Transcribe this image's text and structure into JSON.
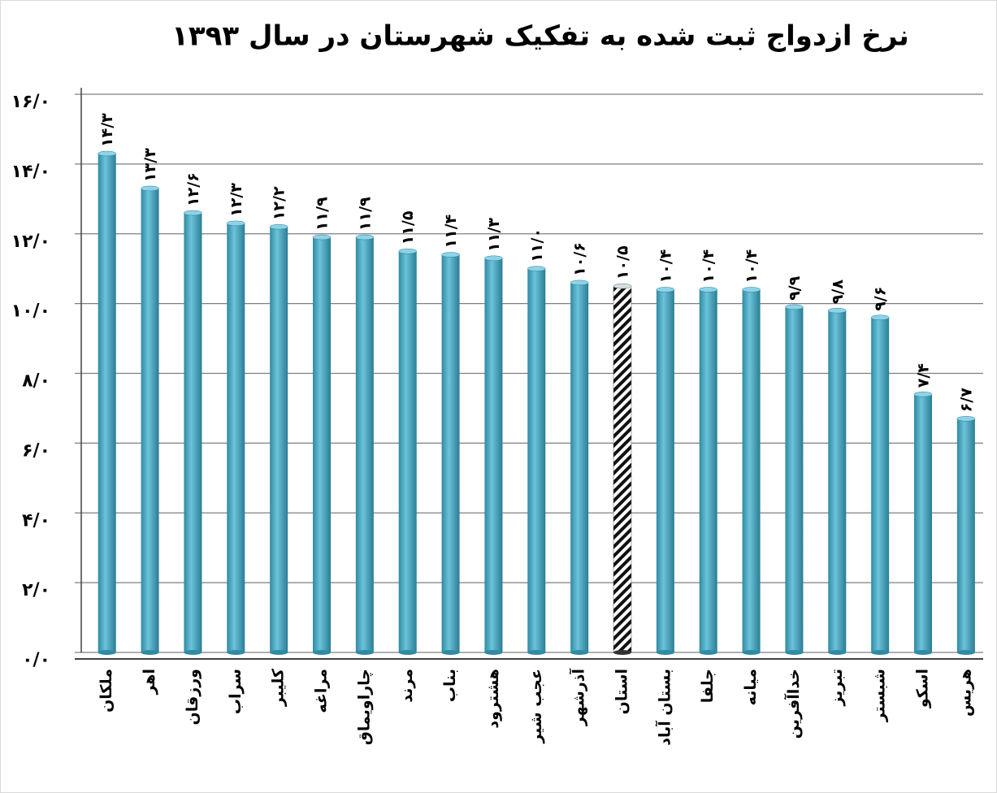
{
  "chart_data": {
    "type": "bar",
    "title": "نرخ ازدواج ثبت شده به تفکیک شهرستان در سال ۱۳۹۳",
    "categories": [
      "ملکان",
      "اهر",
      "ورزقان",
      "سراب",
      "کلیبر",
      "مراغه",
      "چاراویماق",
      "مرند",
      "بناب",
      "هشترود",
      "عجب شیر",
      "آذرشهر",
      "استان",
      "بستان آباد",
      "جلفا",
      "میانه",
      "خداآفرین",
      "تبریز",
      "شبستر",
      "اسکو",
      "هریس"
    ],
    "values": [
      14.3,
      13.3,
      12.6,
      12.3,
      12.2,
      11.9,
      11.9,
      11.5,
      11.4,
      11.3,
      11.0,
      10.6,
      10.5,
      10.4,
      10.4,
      10.4,
      9.9,
      9.8,
      9.6,
      7.4,
      6.7
    ],
    "value_labels": [
      "۱۴/۳",
      "۱۳/۳",
      "۱۲/۶",
      "۱۲/۳",
      "۱۲/۲",
      "۱۱/۹",
      "۱۱/۹",
      "۱۱/۵",
      "۱۱/۴",
      "۱۱/۳",
      "۱۱/۰",
      "۱۰/۶",
      "۱۰/۵",
      "۱۰/۴",
      "۱۰/۴",
      "۱۰/۴",
      "۹/۹",
      "۹/۸",
      "۹/۶",
      "۷/۴",
      "۶/۷"
    ],
    "colors": [
      "#4bacc6",
      "#4bacc6",
      "#4bacc6",
      "#4bacc6",
      "#4bacc6",
      "#4bacc6",
      "#4bacc6",
      "#4bacc6",
      "#4bacc6",
      "#4bacc6",
      "#4bacc6",
      "#4bacc6",
      "hatched",
      "#4bacc6",
      "#4bacc6",
      "#4bacc6",
      "#4bacc6",
      "#4bacc6",
      "#4bacc6",
      "#4bacc6",
      "#4bacc6"
    ],
    "ylim": [
      0,
      16
    ],
    "yticks": [
      {
        "value": 0,
        "label": "۰/۰"
      },
      {
        "value": 2,
        "label": "۲/۰"
      },
      {
        "value": 4,
        "label": "۴/۰"
      },
      {
        "value": 6,
        "label": "۶/۰"
      },
      {
        "value": 8,
        "label": "۸/۰"
      },
      {
        "value": 10,
        "label": "۱۰/۰"
      },
      {
        "value": 12,
        "label": "۱۲/۰"
      },
      {
        "value": 14,
        "label": "۱۴/۰"
      },
      {
        "value": 16,
        "label": "۱۶/۰"
      }
    ],
    "grid": true
  }
}
